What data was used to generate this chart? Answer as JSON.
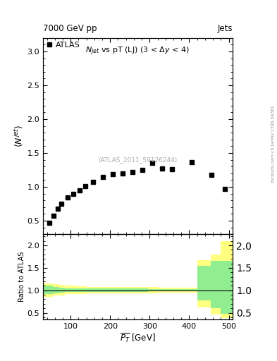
{
  "title_top": "7000 GeV pp",
  "title_top_right": "Jets",
  "ylabel_main": "$\\langle N^{jet} \\rangle$",
  "ylabel_ratio": "Ratio to ATLAS",
  "xlabel": "$\\overline{P_T}$ [GeV]",
  "atlas_label": "ATLAS",
  "inspire_label": "(ATLAS_2011_S9126244)",
  "arxiv_label": "mcplots.cern.ch [arXiv:1306.3436]",
  "data_x": [
    47,
    57,
    67,
    77,
    92,
    107,
    122,
    137,
    157,
    182,
    207,
    232,
    257,
    282,
    307,
    332,
    357,
    407,
    457,
    490
  ],
  "data_y": [
    0.47,
    0.57,
    0.68,
    0.75,
    0.84,
    0.89,
    0.95,
    1.01,
    1.07,
    1.14,
    1.19,
    1.2,
    1.22,
    1.25,
    1.35,
    1.27,
    1.26,
    1.36,
    1.18,
    0.97
  ],
  "ylim_main": [
    0.3,
    3.2
  ],
  "ylim_ratio": [
    0.35,
    2.25
  ],
  "ratio_x_edges": [
    30,
    55,
    70,
    85,
    100,
    120,
    140,
    165,
    195,
    220,
    245,
    270,
    295,
    320,
    345,
    370,
    420,
    455,
    480,
    510
  ],
  "ratio_green_low": [
    0.91,
    0.94,
    0.95,
    0.96,
    0.96,
    0.97,
    0.97,
    0.97,
    0.97,
    0.97,
    0.97,
    0.97,
    0.98,
    0.98,
    0.99,
    0.99,
    0.78,
    0.6,
    0.47,
    0.47
  ],
  "ratio_green_high": [
    1.1,
    1.07,
    1.06,
    1.05,
    1.05,
    1.04,
    1.04,
    1.04,
    1.04,
    1.04,
    1.04,
    1.04,
    1.03,
    1.03,
    1.02,
    1.02,
    1.55,
    1.65,
    1.65,
    1.65
  ],
  "ratio_yellow_low": [
    0.85,
    0.88,
    0.89,
    0.91,
    0.91,
    0.92,
    0.93,
    0.93,
    0.93,
    0.93,
    0.94,
    0.94,
    0.94,
    0.95,
    0.95,
    0.95,
    0.62,
    0.46,
    0.38,
    0.38
  ],
  "ratio_yellow_high": [
    1.15,
    1.13,
    1.12,
    1.1,
    1.1,
    1.09,
    1.08,
    1.08,
    1.08,
    1.08,
    1.07,
    1.07,
    1.07,
    1.06,
    1.06,
    1.06,
    1.67,
    1.8,
    2.1,
    2.1
  ],
  "marker_color": "black",
  "marker_style": "s",
  "marker_size": 4,
  "green_color": "#90EE90",
  "yellow_color": "#FFFF80",
  "background_color": "#ffffff",
  "xlim": [
    30,
    510
  ],
  "main_yticks": [
    0.5,
    1.0,
    1.5,
    2.0,
    2.5,
    3.0
  ],
  "ratio_yticks": [
    0.5,
    1.0,
    1.5,
    2.0
  ],
  "xticks": [
    100,
    200,
    300,
    400,
    500
  ]
}
